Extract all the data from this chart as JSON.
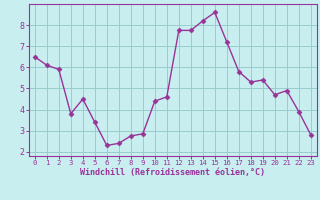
{
  "x": [
    0,
    1,
    2,
    3,
    4,
    5,
    6,
    7,
    8,
    9,
    10,
    11,
    12,
    13,
    14,
    15,
    16,
    17,
    18,
    19,
    20,
    21,
    22,
    23
  ],
  "y": [
    6.5,
    6.1,
    5.9,
    3.8,
    4.5,
    3.4,
    2.3,
    2.4,
    2.75,
    2.85,
    4.4,
    4.6,
    7.75,
    7.75,
    8.2,
    8.6,
    7.2,
    5.8,
    5.3,
    5.4,
    4.7,
    4.9,
    3.9,
    2.8
  ],
  "line_color": "#993399",
  "marker": "D",
  "marker_size": 2.5,
  "bg_color": "#c8eef0",
  "grid_color": "#99cccc",
  "xlabel": "Windchill (Refroidissement éolien,°C)",
  "xlabel_color": "#993399",
  "tick_color": "#993399",
  "ylim": [
    1.8,
    9.0
  ],
  "xlim": [
    -0.5,
    23.5
  ],
  "yticks": [
    2,
    3,
    4,
    5,
    6,
    7,
    8
  ],
  "xticks": [
    0,
    1,
    2,
    3,
    4,
    5,
    6,
    7,
    8,
    9,
    10,
    11,
    12,
    13,
    14,
    15,
    16,
    17,
    18,
    19,
    20,
    21,
    22,
    23
  ],
  "spine_color": "#993399",
  "figsize": [
    3.2,
    2.0
  ],
  "dpi": 100
}
